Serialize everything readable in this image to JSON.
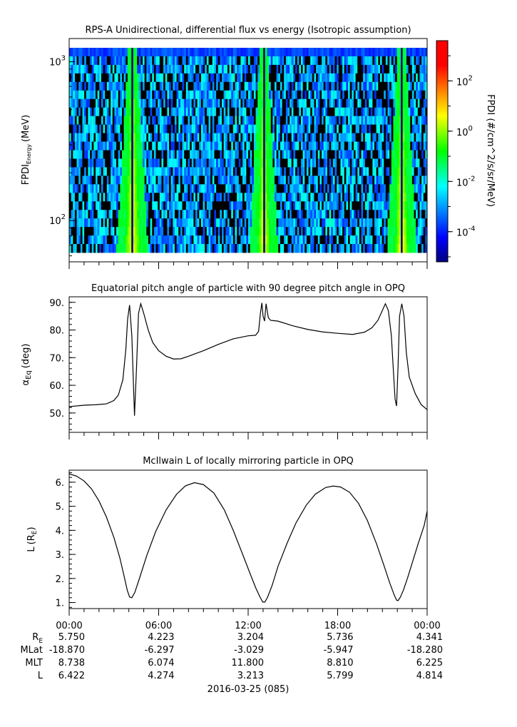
{
  "time_axis": {
    "tick_labels": [
      "00:00",
      "06:00",
      "12:00",
      "18:00",
      "00:00"
    ],
    "date_label": "2016-03-25 (085)"
  },
  "ephemeris": {
    "row_labels": [
      "R_E",
      "MLat",
      "MLT",
      "L"
    ],
    "columns": [
      [
        "5.750",
        "-18.870",
        "8.738",
        "6.422"
      ],
      [
        "4.223",
        "-6.297",
        "6.074",
        "4.274"
      ],
      [
        "3.204",
        "-3.029",
        "11.800",
        "3.213"
      ],
      [
        "5.736",
        "-5.947",
        "8.810",
        "5.799"
      ],
      [
        "4.341",
        "-18.280",
        "6.225",
        "4.814"
      ]
    ]
  },
  "chart_data": [
    {
      "type": "heatmap",
      "title": "RPS-A Unidirectional, differential flux vs energy (Isotropic assumption)",
      "ylabel": "FPDI",
      "ylabel_sub": "Energy",
      "ylabel_unit": "(MeV)",
      "y_scale": "log",
      "ylim": [
        55,
        1400
      ],
      "y_ticks": [
        {
          "base": "10",
          "exp": "3",
          "value": 1000
        },
        {
          "base": "10",
          "exp": "2",
          "value": 100
        }
      ],
      "x_range_hours": [
        0,
        24
      ],
      "bright_bands_hours": [
        {
          "start": 3.7,
          "end": 4.8
        },
        {
          "start": 12.6,
          "end": 13.5
        },
        {
          "start": 21.8,
          "end": 22.8
        }
      ],
      "colorbar": {
        "label": "FPDI (#/cm^2/s/sr/MeV)",
        "scale": "log",
        "range_log10": [
          -5.2,
          3.6
        ],
        "ticks": [
          {
            "base": "10",
            "exp": "2",
            "value": 2
          },
          {
            "base": "10",
            "exp": "0",
            "value": 0
          },
          {
            "base": "10",
            "exp": "-2",
            "value": -2
          },
          {
            "base": "10",
            "exp": "-4",
            "value": -4
          }
        ]
      }
    },
    {
      "type": "line",
      "title": "Equatorial pitch angle of particle with 90 degree pitch angle in OPQ",
      "ylabel": "α",
      "ylabel_sub": "Eq",
      "ylabel_unit": "(deg)",
      "ylim": [
        43,
        92
      ],
      "y_ticks": [
        "90.",
        "80.",
        "70.",
        "60.",
        "50."
      ],
      "y_tick_values": [
        90,
        80,
        70,
        60,
        50
      ],
      "x_hours": [
        0,
        1.0,
        1.8,
        2.5,
        3.0,
        3.3,
        3.6,
        3.8,
        3.92,
        4.05,
        4.2,
        4.38,
        4.52,
        4.65,
        4.8,
        5.0,
        5.3,
        5.6,
        6.0,
        6.5,
        7.0,
        7.5,
        8.0,
        9.0,
        10.0,
        11.0,
        12.0,
        12.5,
        12.7,
        12.82,
        12.92,
        13.0,
        13.1,
        13.2,
        13.35,
        13.5,
        14.0,
        15.0,
        16.0,
        17.0,
        18.0,
        19.0,
        19.8,
        20.3,
        20.7,
        20.95,
        21.2,
        21.4,
        21.6,
        21.75,
        21.85,
        21.95,
        22.05,
        22.15,
        22.3,
        22.45,
        22.6,
        22.8,
        23.2,
        23.6,
        24.0
      ],
      "y_values": [
        52.3,
        52.8,
        53.0,
        53.3,
        54.5,
        56.5,
        62,
        73,
        84,
        89,
        78,
        49,
        67,
        86,
        89.5,
        86,
        80,
        75.5,
        72.5,
        70.5,
        69.5,
        69.6,
        70.5,
        72.5,
        74.8,
        76.8,
        77.9,
        78.1,
        79.5,
        86,
        89.8,
        85,
        83.2,
        89.5,
        84.5,
        83.5,
        83.2,
        81.5,
        80.2,
        79.3,
        78.8,
        78.4,
        79.2,
        80.8,
        83.5,
        86.5,
        89.5,
        87,
        78,
        64,
        55,
        52.5,
        67,
        85,
        89.5,
        85,
        72,
        63,
        57,
        53,
        51.2
      ]
    },
    {
      "type": "line",
      "title": "McIlwain L of locally mirroring particle in OPQ",
      "ylabel": "L",
      "ylabel_unit": "(R_E)",
      "ylim": [
        0.75,
        6.5
      ],
      "y_ticks": [
        "6.",
        "5.",
        "4.",
        "3.",
        "2.",
        "1."
      ],
      "y_tick_values": [
        6,
        5,
        4,
        3,
        2,
        1
      ],
      "x_hours": [
        0,
        0.5,
        1.0,
        1.5,
        2.0,
        2.5,
        3.0,
        3.4,
        3.7,
        3.9,
        4.05,
        4.2,
        4.4,
        4.7,
        5.2,
        5.8,
        6.5,
        7.2,
        7.8,
        8.4,
        9.0,
        9.7,
        10.4,
        11.0,
        11.6,
        12.1,
        12.5,
        12.8,
        12.98,
        13.12,
        13.3,
        13.6,
        14.0,
        14.6,
        15.2,
        15.9,
        16.5,
        17.2,
        17.7,
        18.2,
        18.8,
        19.4,
        20.0,
        20.6,
        21.1,
        21.5,
        21.8,
        21.95,
        22.05,
        22.2,
        22.4,
        22.7,
        23.0,
        23.4,
        23.8,
        24.0
      ],
      "y_values": [
        6.35,
        6.25,
        6.05,
        5.72,
        5.22,
        4.55,
        3.7,
        2.85,
        2.05,
        1.5,
        1.23,
        1.2,
        1.42,
        1.98,
        2.95,
        3.95,
        4.85,
        5.5,
        5.85,
        5.98,
        5.9,
        5.55,
        4.85,
        4.0,
        3.05,
        2.25,
        1.62,
        1.22,
        1.02,
        1.02,
        1.22,
        1.7,
        2.5,
        3.45,
        4.3,
        5.05,
        5.5,
        5.78,
        5.84,
        5.8,
        5.58,
        5.12,
        4.4,
        3.45,
        2.55,
        1.8,
        1.3,
        1.1,
        1.08,
        1.22,
        1.5,
        2.05,
        2.65,
        3.45,
        4.2,
        4.8
      ]
    }
  ]
}
